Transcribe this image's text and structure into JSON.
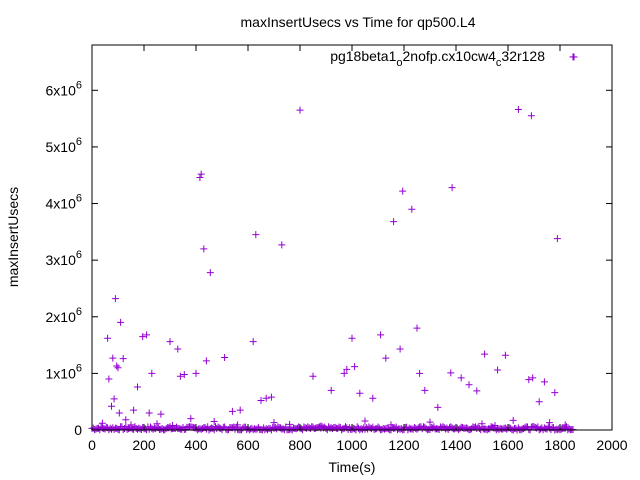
{
  "chart_data": {
    "type": "scatter",
    "title": "maxInsertUsecs vs Time for qp500.L4",
    "xlabel": "Time(s)",
    "ylabel": "maxInsertUsecs",
    "xlim": [
      0,
      2000
    ],
    "ylim": [
      0,
      6800000
    ],
    "xticks": [
      0,
      200,
      400,
      600,
      800,
      1000,
      1200,
      1400,
      1600,
      1800,
      2000
    ],
    "yticks": [
      {
        "value": 0,
        "base": "0",
        "exp": ""
      },
      {
        "value": 1000000,
        "base": "1x10",
        "exp": "6"
      },
      {
        "value": 2000000,
        "base": "2x10",
        "exp": "6"
      },
      {
        "value": 3000000,
        "base": "3x10",
        "exp": "6"
      },
      {
        "value": 4000000,
        "base": "4x10",
        "exp": "6"
      },
      {
        "value": 5000000,
        "base": "5x10",
        "exp": "6"
      },
      {
        "value": 6000000,
        "base": "6x10",
        "exp": "6"
      }
    ],
    "grid": false,
    "legend_position": "top-right",
    "series": [
      {
        "name": "pg18beta1_o2nofp.cx10cw4_c32r128",
        "name_parts": [
          {
            "text": "pg18beta1",
            "sub": false
          },
          {
            "text": "o",
            "sub": true
          },
          {
            "text": "2nofp.cx10cw4",
            "sub": false
          },
          {
            "text": "c",
            "sub": true
          },
          {
            "text": "32r128",
            "sub": false
          }
        ],
        "color": "#9400d3",
        "marker": "plus",
        "points": [
          [
            60,
            1620000
          ],
          [
            65,
            900000
          ],
          [
            75,
            420000
          ],
          [
            80,
            1270000
          ],
          [
            85,
            550000
          ],
          [
            90,
            2320000
          ],
          [
            95,
            1130000
          ],
          [
            100,
            1100000
          ],
          [
            105,
            300000
          ],
          [
            110,
            1900000
          ],
          [
            120,
            1260000
          ],
          [
            160,
            350000
          ],
          [
            175,
            760000
          ],
          [
            195,
            1650000
          ],
          [
            210,
            1680000
          ],
          [
            220,
            300000
          ],
          [
            230,
            1000000
          ],
          [
            265,
            280000
          ],
          [
            300,
            1560000
          ],
          [
            330,
            1430000
          ],
          [
            340,
            950000
          ],
          [
            355,
            980000
          ],
          [
            380,
            200000
          ],
          [
            400,
            1000000
          ],
          [
            415,
            4460000
          ],
          [
            420,
            4520000
          ],
          [
            430,
            3200000
          ],
          [
            440,
            1220000
          ],
          [
            455,
            2780000
          ],
          [
            510,
            1280000
          ],
          [
            540,
            330000
          ],
          [
            570,
            350000
          ],
          [
            620,
            1560000
          ],
          [
            630,
            3450000
          ],
          [
            650,
            520000
          ],
          [
            670,
            560000
          ],
          [
            690,
            580000
          ],
          [
            730,
            3270000
          ],
          [
            800,
            5650000
          ],
          [
            850,
            950000
          ],
          [
            920,
            700000
          ],
          [
            970,
            1000000
          ],
          [
            980,
            1070000
          ],
          [
            1000,
            1620000
          ],
          [
            1010,
            1120000
          ],
          [
            1030,
            650000
          ],
          [
            1080,
            560000
          ],
          [
            1110,
            1680000
          ],
          [
            1130,
            1270000
          ],
          [
            1160,
            3680000
          ],
          [
            1185,
            1430000
          ],
          [
            1195,
            4220000
          ],
          [
            1230,
            3900000
          ],
          [
            1250,
            1800000
          ],
          [
            1260,
            1000000
          ],
          [
            1280,
            700000
          ],
          [
            1330,
            400000
          ],
          [
            1380,
            1010000
          ],
          [
            1385,
            4280000
          ],
          [
            1420,
            920000
          ],
          [
            1450,
            800000
          ],
          [
            1480,
            690000
          ],
          [
            1510,
            1340000
          ],
          [
            1560,
            1060000
          ],
          [
            1590,
            1320000
          ],
          [
            1640,
            5660000
          ],
          [
            1680,
            890000
          ],
          [
            1690,
            5550000
          ],
          [
            1695,
            920000
          ],
          [
            1720,
            500000
          ],
          [
            1740,
            850000
          ],
          [
            1780,
            660000
          ],
          [
            1790,
            3380000
          ],
          [
            1850,
            6590000
          ],
          [
            40,
            120000
          ],
          [
            130,
            180000
          ],
          [
            150,
            90000
          ],
          [
            250,
            110000
          ],
          [
            310,
            80000
          ],
          [
            470,
            150000
          ],
          [
            560,
            90000
          ],
          [
            700,
            130000
          ],
          [
            760,
            100000
          ],
          [
            880,
            70000
          ],
          [
            1050,
            160000
          ],
          [
            1150,
            90000
          ],
          [
            1300,
            140000
          ],
          [
            1350,
            60000
          ],
          [
            1500,
            110000
          ],
          [
            1550,
            80000
          ],
          [
            1620,
            170000
          ],
          [
            1700,
            60000
          ],
          [
            1760,
            130000
          ],
          [
            1820,
            90000
          ]
        ],
        "baseline_x_range": [
          0,
          1850
        ],
        "baseline_max": 60000
      }
    ]
  }
}
